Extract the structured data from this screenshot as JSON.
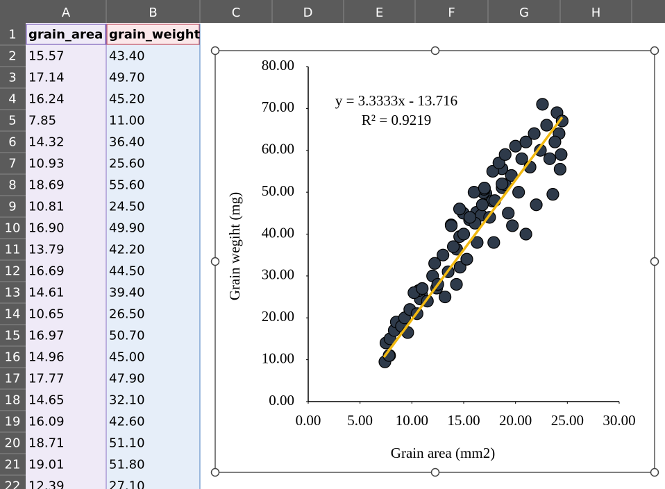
{
  "spreadsheet": {
    "columns": [
      "A",
      "B",
      "C",
      "D",
      "E",
      "F",
      "G",
      "H"
    ],
    "row_numbers": [
      1,
      2,
      3,
      4,
      5,
      6,
      7,
      8,
      9,
      10,
      11,
      12,
      13,
      14,
      15,
      16,
      17,
      18,
      19,
      20,
      21,
      22
    ],
    "cells": [
      [
        "grain_area",
        "grain_weight"
      ],
      [
        "15.57",
        "43.40"
      ],
      [
        "17.14",
        "49.70"
      ],
      [
        "16.24",
        "45.20"
      ],
      [
        "7.85",
        "11.00"
      ],
      [
        "14.32",
        "36.40"
      ],
      [
        "10.93",
        "25.60"
      ],
      [
        "18.69",
        "55.60"
      ],
      [
        "10.81",
        "24.50"
      ],
      [
        "16.90",
        "49.90"
      ],
      [
        "13.79",
        "42.20"
      ],
      [
        "16.69",
        "44.50"
      ],
      [
        "14.61",
        "39.40"
      ],
      [
        "10.65",
        "26.50"
      ],
      [
        "16.97",
        "50.70"
      ],
      [
        "14.96",
        "45.00"
      ],
      [
        "17.77",
        "47.90"
      ],
      [
        "14.65",
        "32.10"
      ],
      [
        "16.09",
        "42.60"
      ],
      [
        "18.71",
        "51.10"
      ],
      [
        "19.01",
        "51.80"
      ],
      [
        "12.39",
        "27.10"
      ]
    ]
  },
  "chart_data": {
    "type": "scatter",
    "x_label": "Grain area (mm2)",
    "y_label": "Grain wegiht (mg)",
    "annotations": [
      "y = 3.3333x - 13.716",
      "R² = 0.9219"
    ],
    "xlim": [
      0,
      30
    ],
    "xticks": [
      {
        "value": 0,
        "label": "0.00"
      },
      {
        "value": 5,
        "label": "5.00"
      },
      {
        "value": 10,
        "label": "10.00"
      },
      {
        "value": 15,
        "label": "15.00"
      },
      {
        "value": 20,
        "label": "20.00"
      },
      {
        "value": 25,
        "label": "25.00"
      },
      {
        "value": 30,
        "label": "30.00"
      }
    ],
    "ylim": [
      0,
      80
    ],
    "yticks": [
      {
        "value": 0,
        "label": "0.00"
      },
      {
        "value": 10,
        "label": "10.00"
      },
      {
        "value": 20,
        "label": "20.00"
      },
      {
        "value": 30,
        "label": "30.00"
      },
      {
        "value": 40,
        "label": "40.00"
      },
      {
        "value": 50,
        "label": "50.00"
      },
      {
        "value": 60,
        "label": "60.00"
      },
      {
        "value": 70,
        "label": "70.00"
      },
      {
        "value": 80,
        "label": "80.00"
      }
    ],
    "color": "#2e3a4a",
    "x": [
      15.57,
      17.14,
      16.24,
      7.85,
      14.32,
      10.93,
      18.69,
      10.81,
      16.9,
      13.79,
      16.69,
      14.61,
      10.65,
      16.97,
      14.96,
      17.77,
      14.65,
      16.09,
      18.71,
      19.01,
      12.39,
      7.4,
      7.5,
      7.8,
      7.9,
      8.3,
      8.5,
      9,
      9.3,
      9.6,
      9.8,
      10.2,
      10.5,
      11,
      11.5,
      12,
      12.2,
      12.5,
      13,
      13.2,
      13.5,
      13.8,
      14,
      14.3,
      14.6,
      15,
      15.3,
      15.6,
      16,
      16.3,
      16.8,
      17,
      17.5,
      17.8,
      18,
      18.4,
      18.7,
      19,
      19.3,
      19.6,
      20,
      20.3,
      20.6,
      21,
      21.4,
      21.8,
      22,
      22.4,
      22.6,
      23,
      23.3,
      23.6,
      24,
      24.2,
      24.4,
      24.5,
      24.3,
      23.8,
      21,
      19.7,
      17.9
    ],
    "y": [
      43.4,
      49.7,
      45.2,
      11,
      36.4,
      25.6,
      55.6,
      24.5,
      49.9,
      42.2,
      44.5,
      39.4,
      26.5,
      50.7,
      45,
      47.9,
      32.1,
      42.6,
      51.1,
      51.8,
      27.1,
      9.5,
      14,
      11,
      15,
      17,
      19,
      18,
      20,
      16.5,
      22,
      26,
      21,
      27,
      24,
      30,
      33,
      28,
      35,
      25,
      31,
      42,
      37,
      28,
      46,
      40,
      34,
      44,
      50,
      38,
      47,
      51,
      44,
      55,
      48,
      57,
      52,
      59,
      45,
      54,
      61,
      50,
      58,
      62,
      56,
      64,
      47,
      60,
      71,
      66,
      58,
      49.5,
      69,
      64,
      59,
      67,
      55.5,
      62,
      40,
      42,
      38
    ],
    "trendline": {
      "color": "#f2b90f",
      "x": [
        7.3,
        24.5
      ],
      "y": [
        10.6,
        67.9
      ]
    }
  }
}
